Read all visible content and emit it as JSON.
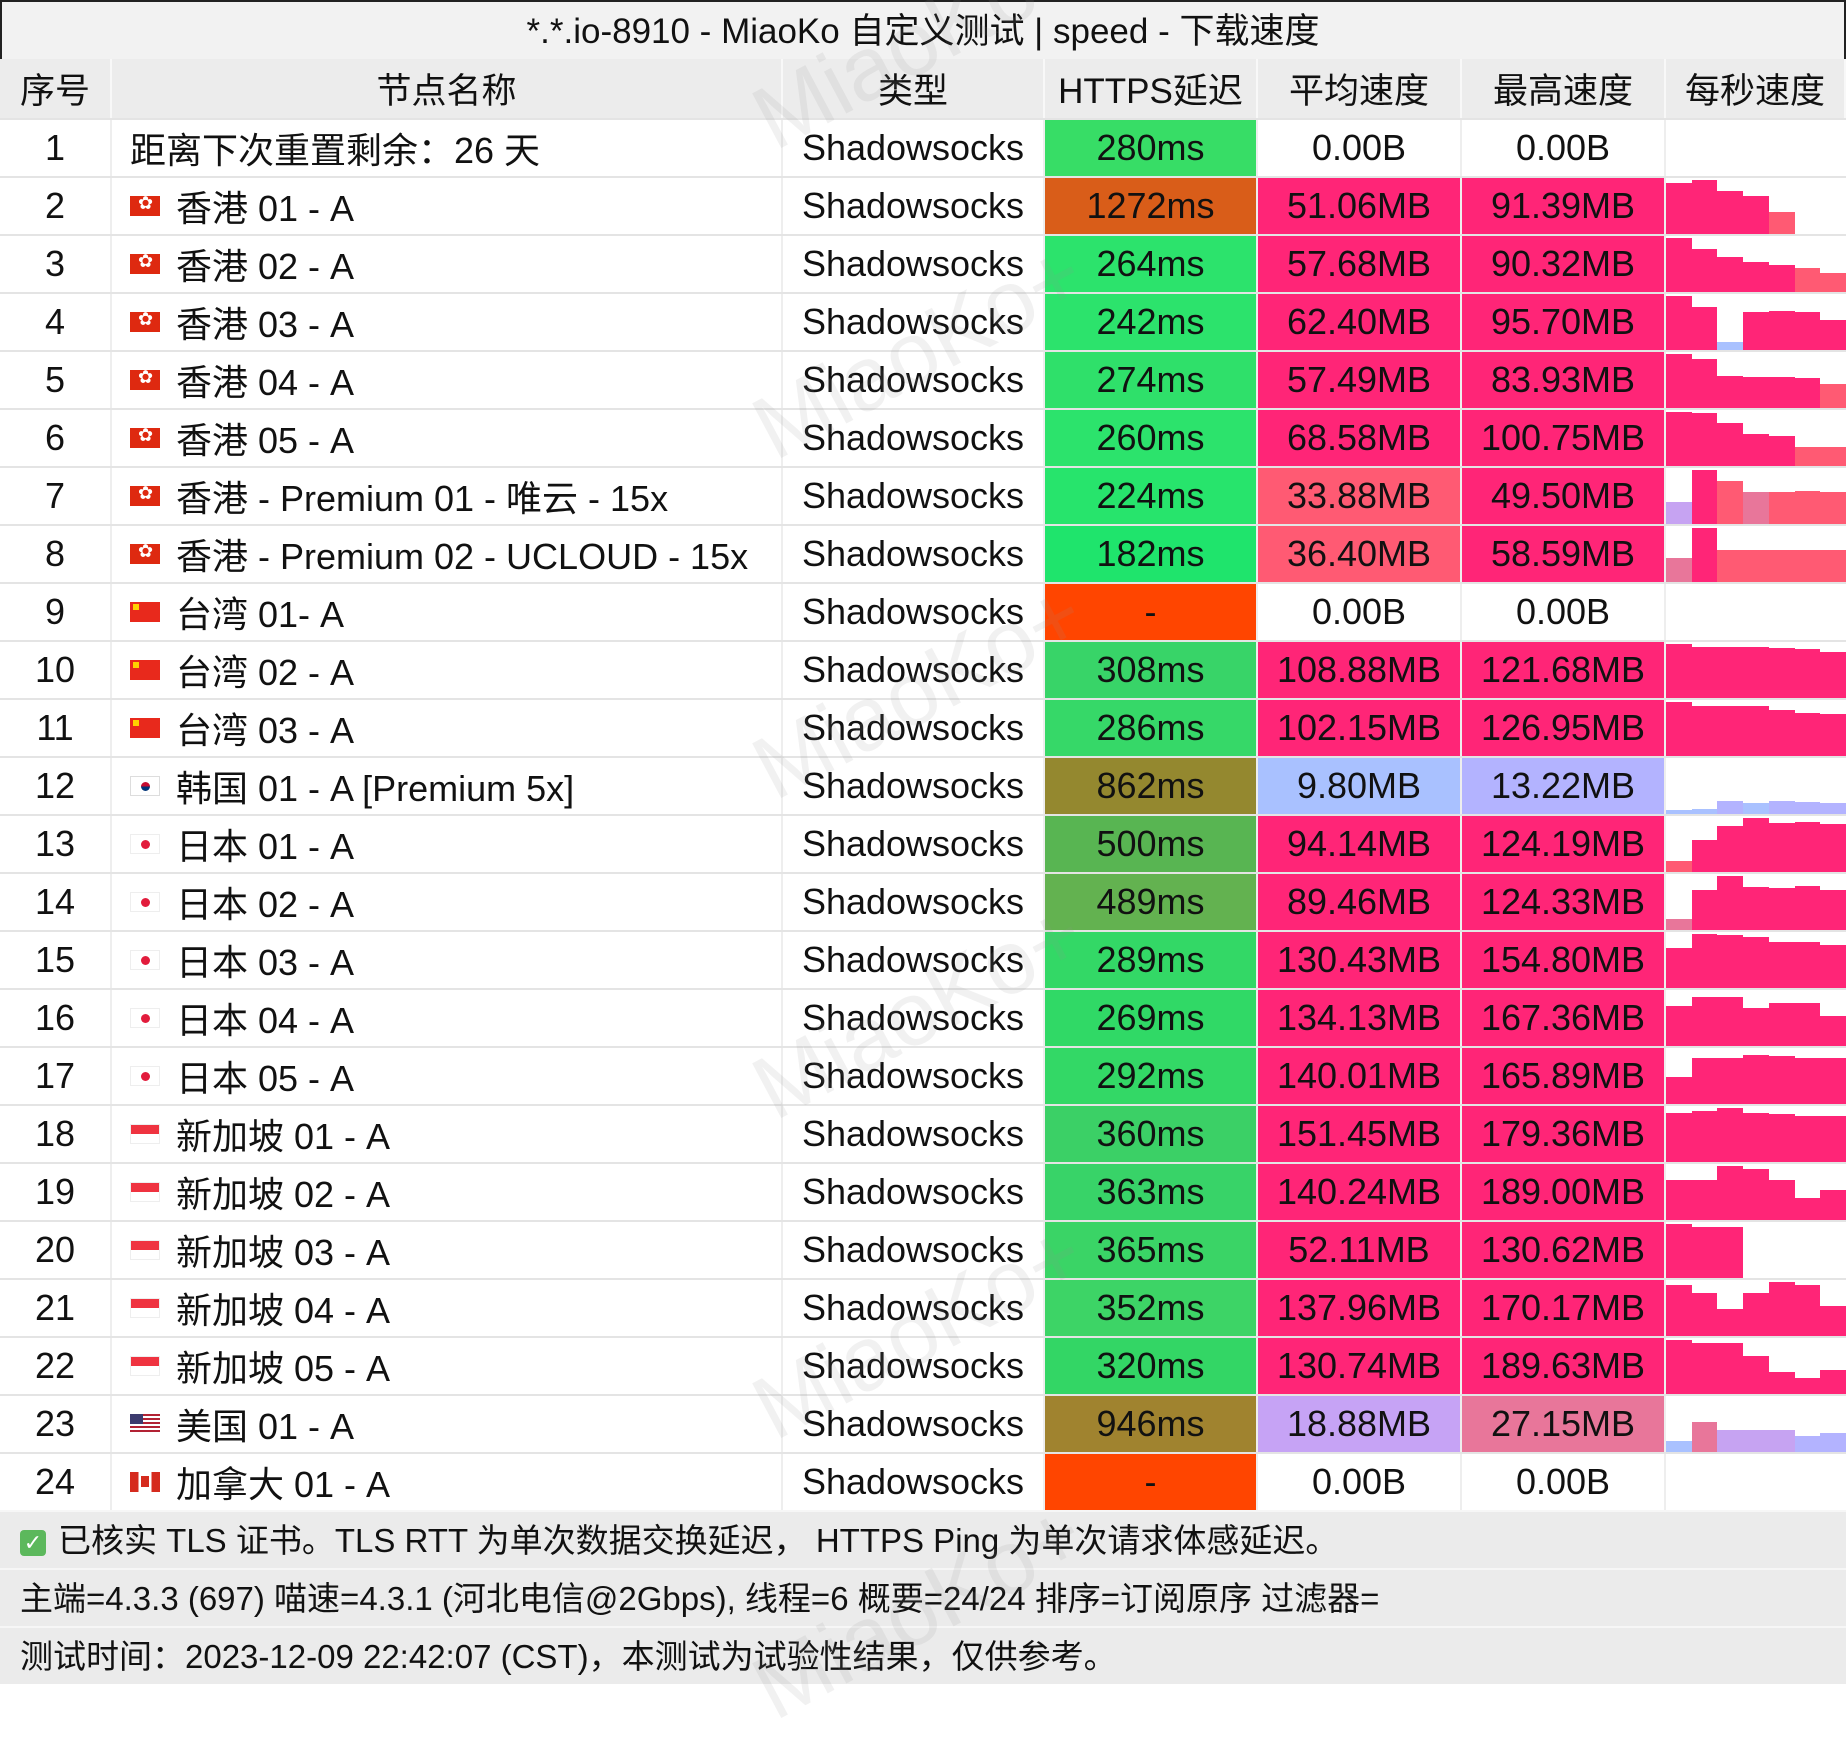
{
  "title": "*.*.io-8910 - MiaoKo 自定义测试 | speed - 下载速度",
  "watermark": "MiaoKo+",
  "columns": [
    "序号",
    "节点名称",
    "类型",
    "HTTPS延迟",
    "平均速度",
    "最高速度",
    "每秒速度"
  ],
  "colors": {
    "pink": "#ff2577",
    "light": "#ff5a73",
    "purple": "#c6a3f2",
    "blue": "#a9c1ff",
    "lavender": "#b3b3ff",
    "rose": "#e8769a",
    "dead": "#ff4500"
  },
  "rows": [
    {
      "no": "1",
      "flag": "",
      "name": "距离下次重置剩余：26 天",
      "type": "Shadowsocks",
      "latency": "280ms",
      "lat_color": "#37dd66",
      "avg": "0.00B",
      "avg_color": "#ffffff",
      "max": "0.00B",
      "max_color": "#ffffff",
      "per_second": [],
      "bar_colors": []
    },
    {
      "no": "2",
      "flag": "hk",
      "name": "香港 01 - A",
      "type": "Shadowsocks",
      "latency": "1272ms",
      "lat_color": "#d95d19",
      "avg": "51.06MB",
      "avg_color": "#ff2577",
      "max": "91.39MB",
      "max_color": "#ff2577",
      "per_second": [
        0.95,
        1,
        0.8,
        0.7,
        0.4,
        0,
        0
      ],
      "bar_colors": [
        "p",
        "p",
        "p",
        "p",
        "l",
        "p",
        "p"
      ]
    },
    {
      "no": "3",
      "flag": "hk",
      "name": "香港 02 - A",
      "type": "Shadowsocks",
      "latency": "264ms",
      "lat_color": "#2ce36c",
      "avg": "57.68MB",
      "avg_color": "#ff2577",
      "max": "90.32MB",
      "max_color": "#ff2577",
      "per_second": [
        1,
        0.8,
        0.65,
        0.55,
        0.5,
        0.45,
        0.35
      ],
      "bar_colors": [
        "p",
        "p",
        "p",
        "p",
        "p",
        "l",
        "l"
      ]
    },
    {
      "no": "4",
      "flag": "hk",
      "name": "香港 03 - A",
      "type": "Shadowsocks",
      "latency": "242ms",
      "lat_color": "#2ce36c",
      "avg": "62.40MB",
      "avg_color": "#ff2577",
      "max": "95.70MB",
      "max_color": "#ff2577",
      "per_second": [
        1,
        0.8,
        0.15,
        0.7,
        0.72,
        0.7,
        0.55
      ],
      "bar_colors": [
        "p",
        "p",
        "b",
        "p",
        "p",
        "p",
        "p"
      ]
    },
    {
      "no": "5",
      "flag": "hk",
      "name": "香港 04 - A",
      "type": "Shadowsocks",
      "latency": "274ms",
      "lat_color": "#2fe06a",
      "avg": "57.49MB",
      "avg_color": "#ff2577",
      "max": "83.93MB",
      "max_color": "#ff2577",
      "per_second": [
        1,
        0.9,
        0.6,
        0.58,
        0.58,
        0.55,
        0.45
      ],
      "bar_colors": [
        "p",
        "p",
        "p",
        "p",
        "p",
        "p",
        "l"
      ]
    },
    {
      "no": "6",
      "flag": "hk",
      "name": "香港 05 - A",
      "type": "Shadowsocks",
      "latency": "260ms",
      "lat_color": "#2ce36c",
      "avg": "68.58MB",
      "avg_color": "#ff2577",
      "max": "100.75MB",
      "max_color": "#ff2577",
      "per_second": [
        1,
        0.98,
        0.8,
        0.6,
        0.55,
        0.35,
        0.35
      ],
      "bar_colors": [
        "p",
        "p",
        "p",
        "p",
        "p",
        "l",
        "l"
      ]
    },
    {
      "no": "7",
      "flag": "hk",
      "name": "香港 - Premium 01 - 唯云 - 15x",
      "type": "Shadowsocks",
      "latency": "224ms",
      "lat_color": "#27e46c",
      "avg": "33.88MB",
      "avg_color": "#ff5a73",
      "max": "49.50MB",
      "max_color": "#ff2577",
      "per_second": [
        0.4,
        1,
        0.8,
        0.6,
        0.6,
        0.62,
        0.6
      ],
      "bar_colors": [
        "u",
        "p",
        "l",
        "r",
        "l",
        "l",
        "l"
      ]
    },
    {
      "no": "8",
      "flag": "hk",
      "name": "香港 - Premium 02 - UCLOUD - 15x",
      "type": "Shadowsocks",
      "latency": "182ms",
      "lat_color": "#1fe46c",
      "avg": "36.40MB",
      "avg_color": "#ff5a73",
      "max": "58.59MB",
      "max_color": "#ff2577",
      "per_second": [
        0.45,
        1,
        0.6,
        0.6,
        0.6,
        0.6,
        0.6
      ],
      "bar_colors": [
        "r",
        "p",
        "l",
        "l",
        "l",
        "l",
        "l"
      ]
    },
    {
      "no": "9",
      "flag": "tw",
      "name": "台湾 01- A",
      "type": "Shadowsocks",
      "latency": "-",
      "lat_color": "#ff4500",
      "avg": "0.00B",
      "avg_color": "#ffffff",
      "max": "0.00B",
      "max_color": "#ffffff",
      "per_second": [],
      "bar_colors": []
    },
    {
      "no": "10",
      "flag": "tw",
      "name": "台湾 02 - A",
      "type": "Shadowsocks",
      "latency": "308ms",
      "lat_color": "#38d468",
      "avg": "108.88MB",
      "avg_color": "#ff2577",
      "max": "121.68MB",
      "max_color": "#ff2577",
      "per_second": [
        1,
        0.95,
        0.95,
        0.95,
        0.92,
        0.9,
        0.85
      ],
      "bar_colors": [
        "p",
        "p",
        "p",
        "p",
        "p",
        "p",
        "p"
      ]
    },
    {
      "no": "11",
      "flag": "tw",
      "name": "台湾 03 - A",
      "type": "Shadowsocks",
      "latency": "286ms",
      "lat_color": "#36d868",
      "avg": "102.15MB",
      "avg_color": "#ff2577",
      "max": "126.95MB",
      "max_color": "#ff2577",
      "per_second": [
        1,
        0.92,
        0.92,
        0.92,
        0.85,
        0.8,
        0.78
      ],
      "bar_colors": [
        "p",
        "p",
        "p",
        "p",
        "p",
        "p",
        "p"
      ]
    },
    {
      "no": "12",
      "flag": "kr",
      "name": "韩国 01 - A [Premium 5x]",
      "type": "Shadowsocks",
      "latency": "862ms",
      "lat_color": "#94882f",
      "avg": "9.80MB",
      "avg_color": "#a9c1ff",
      "max": "13.22MB",
      "max_color": "#b3b3ff",
      "per_second": [
        0.08,
        0.1,
        0.25,
        0.2,
        0.25,
        0.22,
        0.2
      ],
      "bar_colors": [
        "b",
        "b",
        "v",
        "b",
        "v",
        "v",
        "v"
      ]
    },
    {
      "no": "13",
      "flag": "jp",
      "name": "日本 01 - A",
      "type": "Shadowsocks",
      "latency": "500ms",
      "lat_color": "#58b552",
      "avg": "94.14MB",
      "avg_color": "#ff2577",
      "max": "124.19MB",
      "max_color": "#ff2577",
      "per_second": [
        0.2,
        0.6,
        0.85,
        1,
        0.9,
        0.92,
        0.88
      ],
      "bar_colors": [
        "l",
        "p",
        "p",
        "p",
        "p",
        "p",
        "p"
      ]
    },
    {
      "no": "14",
      "flag": "jp",
      "name": "日本 02 - A",
      "type": "Shadowsocks",
      "latency": "489ms",
      "lat_color": "#63b250",
      "avg": "89.46MB",
      "avg_color": "#ff2577",
      "max": "124.33MB",
      "max_color": "#ff2577",
      "per_second": [
        0.2,
        0.75,
        1,
        0.8,
        0.78,
        0.82,
        0.75
      ],
      "bar_colors": [
        "r",
        "p",
        "p",
        "p",
        "p",
        "p",
        "p"
      ]
    },
    {
      "no": "15",
      "flag": "jp",
      "name": "日本 03 - A",
      "type": "Shadowsocks",
      "latency": "289ms",
      "lat_color": "#33d866",
      "avg": "130.43MB",
      "avg_color": "#ff2577",
      "max": "154.80MB",
      "max_color": "#ff2577",
      "per_second": [
        0.75,
        1,
        0.98,
        0.95,
        0.85,
        0.85,
        0.8
      ],
      "bar_colors": [
        "p",
        "p",
        "p",
        "p",
        "p",
        "p",
        "p"
      ]
    },
    {
      "no": "16",
      "flag": "jp",
      "name": "日本 04 - A",
      "type": "Shadowsocks",
      "latency": "269ms",
      "lat_color": "#30d966",
      "avg": "134.13MB",
      "avg_color": "#ff2577",
      "max": "167.36MB",
      "max_color": "#ff2577",
      "per_second": [
        0.75,
        0.9,
        0.9,
        0.7,
        0.8,
        0.8,
        0.55
      ],
      "bar_colors": [
        "p",
        "p",
        "p",
        "p",
        "p",
        "p",
        "p"
      ]
    },
    {
      "no": "17",
      "flag": "jp",
      "name": "日本 05 - A",
      "type": "Shadowsocks",
      "latency": "292ms",
      "lat_color": "#33d866",
      "avg": "140.01MB",
      "avg_color": "#ff2577",
      "max": "165.89MB",
      "max_color": "#ff2577",
      "per_second": [
        0.5,
        0.85,
        0.85,
        0.9,
        0.88,
        0.85,
        0.85
      ],
      "bar_colors": [
        "p",
        "p",
        "p",
        "p",
        "p",
        "p",
        "p"
      ]
    },
    {
      "no": "18",
      "flag": "sg",
      "name": "新加坡 01 - A",
      "type": "Shadowsocks",
      "latency": "360ms",
      "lat_color": "#3bd066",
      "avg": "151.45MB",
      "avg_color": "#ff2577",
      "max": "179.36MB",
      "max_color": "#ff2577",
      "per_second": [
        0.9,
        0.95,
        1,
        0.9,
        0.88,
        0.85,
        0.85
      ],
      "bar_colors": [
        "p",
        "p",
        "p",
        "p",
        "p",
        "p",
        "p"
      ]
    },
    {
      "no": "19",
      "flag": "sg",
      "name": "新加坡 02 - A",
      "type": "Shadowsocks",
      "latency": "363ms",
      "lat_color": "#38d368",
      "avg": "140.24MB",
      "avg_color": "#ff2577",
      "max": "189.00MB",
      "max_color": "#ff2577",
      "per_second": [
        0.75,
        0.75,
        1,
        0.95,
        0.75,
        0.4,
        0.55
      ],
      "bar_colors": [
        "p",
        "p",
        "p",
        "p",
        "p",
        "p",
        "p"
      ]
    },
    {
      "no": "20",
      "flag": "sg",
      "name": "新加坡 03 - A",
      "type": "Shadowsocks",
      "latency": "365ms",
      "lat_color": "#3ad466",
      "avg": "52.11MB",
      "avg_color": "#ff2577",
      "max": "130.62MB",
      "max_color": "#ff2577",
      "per_second": [
        1,
        0.95,
        0.95,
        0,
        0,
        0,
        0
      ],
      "bar_colors": [
        "p",
        "p",
        "p",
        "p",
        "p",
        "p",
        "p"
      ]
    },
    {
      "no": "21",
      "flag": "sg",
      "name": "新加坡 04 - A",
      "type": "Shadowsocks",
      "latency": "352ms",
      "lat_color": "#3dd466",
      "avg": "137.96MB",
      "avg_color": "#ff2577",
      "max": "170.17MB",
      "max_color": "#ff2577",
      "per_second": [
        0.95,
        0.8,
        0.5,
        0.8,
        1,
        0.95,
        0.55
      ],
      "bar_colors": [
        "p",
        "p",
        "p",
        "p",
        "p",
        "p",
        "p"
      ]
    },
    {
      "no": "22",
      "flag": "sg",
      "name": "新加坡 05 - A",
      "type": "Shadowsocks",
      "latency": "320ms",
      "lat_color": "#33d665",
      "avg": "130.74MB",
      "avg_color": "#ff2577",
      "max": "189.63MB",
      "max_color": "#ff2577",
      "per_second": [
        1,
        0.95,
        0.95,
        0.7,
        0.4,
        0.3,
        0.45
      ],
      "bar_colors": [
        "p",
        "p",
        "p",
        "p",
        "p",
        "p",
        "p"
      ]
    },
    {
      "no": "23",
      "flag": "us",
      "name": "美国 01 - A",
      "type": "Shadowsocks",
      "latency": "946ms",
      "lat_color": "#a0832f",
      "avg": "18.88MB",
      "avg_color": "#c6a3f5",
      "max": "27.15MB",
      "max_color": "#e8769a",
      "per_second": [
        0.2,
        0.55,
        0.4,
        0.4,
        0.4,
        0.3,
        0.35
      ],
      "bar_colors": [
        "b",
        "r",
        "u",
        "u",
        "u",
        "v",
        "v"
      ]
    },
    {
      "no": "24",
      "flag": "ca",
      "name": "加拿大 01 - A",
      "type": "Shadowsocks",
      "latency": "-",
      "lat_color": "#ff4500",
      "avg": "0.00B",
      "avg_color": "#ffffff",
      "max": "0.00B",
      "max_color": "#ffffff",
      "per_second": [],
      "bar_colors": []
    }
  ],
  "footer": {
    "check_icon": "checkbox-checked-icon",
    "line1": "已核实 TLS 证书。TLS RTT 为单次数据交换延迟， HTTPS Ping 为单次请求体感延迟。",
    "line2": "主端=4.3.3 (697) 喵速=4.3.1 (河北电信@2Gbps), 线程=6 概要=24/24 排序=订阅原序 过滤器=",
    "line3": "测试时间：2023-12-09 22:42:07 (CST)，本测试为试验性结果，仅供参考。"
  }
}
